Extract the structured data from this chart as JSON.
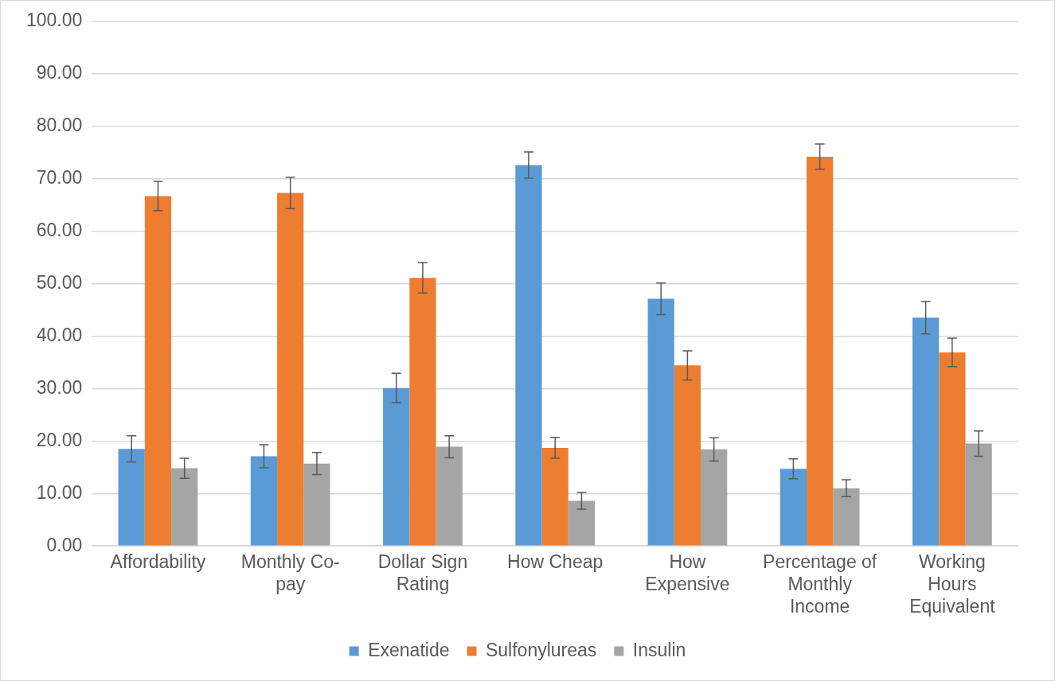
{
  "chart_data": {
    "type": "bar",
    "categories": [
      "Affordability",
      "Monthly Co-pay",
      "Dollar Sign Rating",
      "How Cheap",
      "How Expensive",
      "Percentage of Monthly Income",
      "Working Hours Equivalent"
    ],
    "series": [
      {
        "name": "Exenatide",
        "color": "#5b9bd5",
        "values": [
          18.5,
          17.1,
          30.1,
          72.6,
          47.1,
          14.7,
          43.5
        ],
        "errors": [
          2.5,
          2.2,
          2.8,
          2.5,
          3.0,
          1.9,
          3.1
        ]
      },
      {
        "name": "Sulfonylureas",
        "color": "#ed7d31",
        "values": [
          66.7,
          67.3,
          51.1,
          18.7,
          34.4,
          74.2,
          36.9
        ],
        "errors": [
          2.8,
          3.0,
          2.9,
          2.0,
          2.8,
          2.4,
          2.7
        ]
      },
      {
        "name": "Insulin",
        "color": "#a5a5a5",
        "values": [
          14.8,
          15.7,
          18.9,
          8.6,
          18.4,
          11.0,
          19.5
        ],
        "errors": [
          1.9,
          2.1,
          2.1,
          1.6,
          2.2,
          1.6,
          2.4
        ]
      }
    ],
    "ylim": [
      0,
      100
    ],
    "yticks": [
      {
        "value": 0,
        "label": "0.00"
      },
      {
        "value": 10,
        "label": "10.00"
      },
      {
        "value": 20,
        "label": "20.00"
      },
      {
        "value": 30,
        "label": "30.00"
      },
      {
        "value": 40,
        "label": "40.00"
      },
      {
        "value": 50,
        "label": "50.00"
      },
      {
        "value": 60,
        "label": "60.00"
      },
      {
        "value": 70,
        "label": "70.00"
      },
      {
        "value": 80,
        "label": "80.00"
      },
      {
        "value": 90,
        "label": "90.00"
      },
      {
        "value": 100,
        "label": "100.00"
      }
    ],
    "grid": "y",
    "legend": "bottom"
  }
}
